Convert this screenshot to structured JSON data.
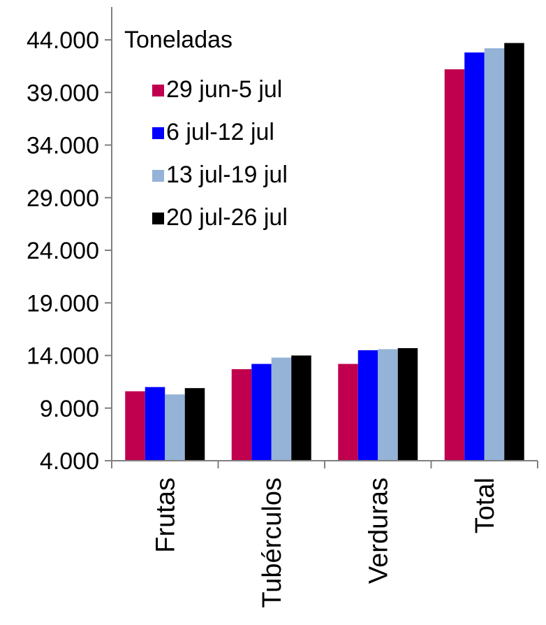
{
  "chart_data": {
    "type": "bar",
    "unit_label": "Toneladas",
    "categories": [
      "Frutas",
      "Tubérculos",
      "Verduras",
      "Total"
    ],
    "series": [
      {
        "name": "29 jun-5 jul",
        "color": "#c0004e",
        "values": [
          10600,
          12700,
          13200,
          41200
        ]
      },
      {
        "name": "6 jul-12 jul",
        "color": "#0000ff",
        "values": [
          11000,
          13200,
          14500,
          42800
        ]
      },
      {
        "name": "13 jul-19 jul",
        "color": "#95b3d7",
        "values": [
          10300,
          13800,
          14600,
          43200
        ]
      },
      {
        "name": "20 jul-26 jul",
        "color": "#000000",
        "values": [
          10900,
          14000,
          14700,
          43700
        ]
      }
    ],
    "yticks": [
      "4.000",
      "9.000",
      "14.000",
      "19.000",
      "24.000",
      "29.000",
      "34.000",
      "39.000",
      "44.000"
    ],
    "ytick_values": [
      4000,
      9000,
      14000,
      19000,
      24000,
      29000,
      34000,
      39000,
      44000
    ],
    "ylim": [
      4000,
      44000
    ],
    "grid": false,
    "legend_position": "top-left"
  }
}
